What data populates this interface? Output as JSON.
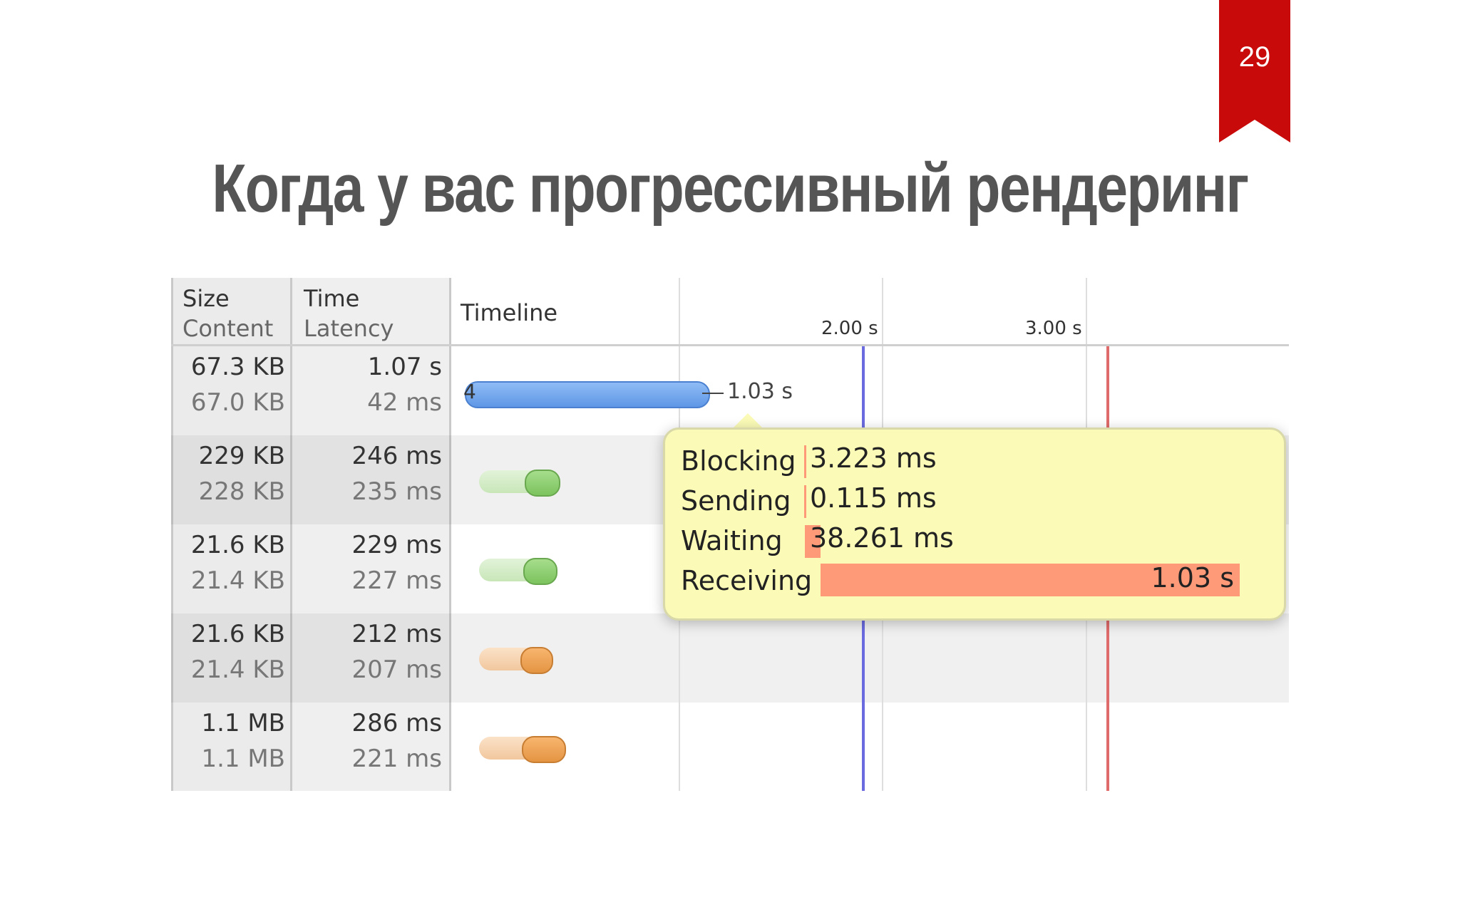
{
  "slide": {
    "number": "29",
    "title": "Когда у вас прогрессивный рендеринг"
  },
  "table": {
    "headers": {
      "size": "Size",
      "content": "Content",
      "time": "Time",
      "latency": "Latency",
      "timeline": "Timeline"
    },
    "ticks": [
      "2.00 s",
      "3.00 s"
    ],
    "rows": [
      {
        "size": "67.3 KB",
        "content": "67.0 KB",
        "time": "1.07 s",
        "latency": "42 ms",
        "bar_color": "blue"
      },
      {
        "size": "229 KB",
        "content": "228 KB",
        "time": "246 ms",
        "latency": "235 ms",
        "bar_color": "green"
      },
      {
        "size": "21.6 KB",
        "content": "21.4 KB",
        "time": "229 ms",
        "latency": "227 ms",
        "bar_color": "green"
      },
      {
        "size": "21.6 KB",
        "content": "21.4 KB",
        "time": "212 ms",
        "latency": "207 ms",
        "bar_color": "orange"
      },
      {
        "size": "1.1 MB",
        "content": "1.1 MB",
        "time": "286 ms",
        "latency": "221 ms",
        "bar_color": "orange"
      }
    ],
    "first_bar": {
      "left_label": "4",
      "duration_label": "1.03 s"
    },
    "marker_colors": {
      "dom_content_loaded": "#6b6be0",
      "load": "#e06b6b"
    }
  },
  "tooltip": {
    "blocking_label": "Blocking",
    "blocking_value": "3.223 ms",
    "sending_label": "Sending",
    "sending_value": "0.115 ms",
    "waiting_label": "Waiting",
    "waiting_value": "38.261 ms",
    "receiving_label": "Receiving",
    "receiving_value": "1.03 s"
  }
}
